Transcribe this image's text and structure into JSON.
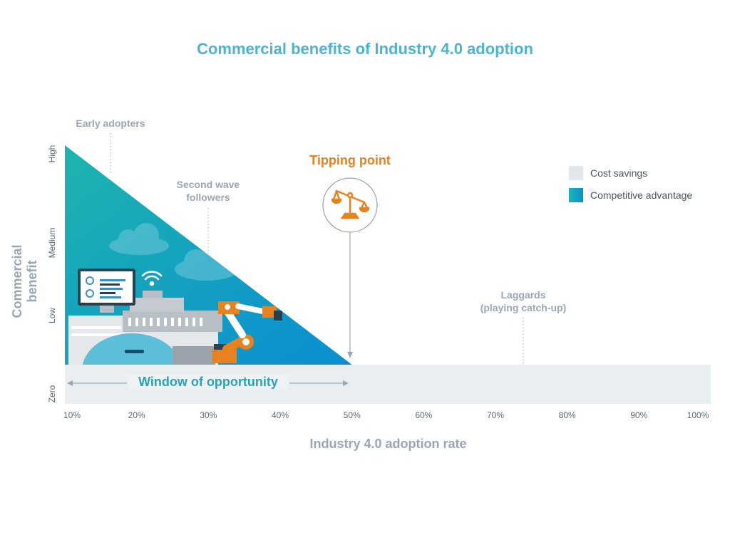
{
  "chart_data": {
    "type": "area",
    "title": "Commercial benefits of Industry 4.0 adoption",
    "xlabel": "Industry 4.0 adoption rate",
    "ylabel": "Commercial benefit",
    "x_ticks": [
      "10%",
      "20%",
      "30%",
      "40%",
      "50%",
      "60%",
      "70%",
      "80%",
      "90%",
      "100%"
    ],
    "y_ticks": [
      "Zero",
      "Low",
      "Medium",
      "High"
    ],
    "xlim": [
      10,
      100
    ],
    "series": [
      {
        "name": "Cost savings",
        "x": [
          10,
          100
        ],
        "y_level": "Zero",
        "color": "#e9eef1"
      },
      {
        "name": "Competitive advantage",
        "x": [
          10,
          50
        ],
        "y": [
          "High",
          "Zero"
        ],
        "color_start": "#1ab0b0",
        "color_end": "#0a8fd0"
      }
    ],
    "annotations": [
      {
        "text": "Early adopters",
        "x": 16.5
      },
      {
        "text_lines": [
          "Second wave",
          "followers"
        ],
        "x": 30
      },
      {
        "text": "Tipping point",
        "x": 50
      },
      {
        "text_lines": [
          "Laggards",
          "(playing catch-up)"
        ],
        "x": 75.5
      },
      {
        "text": "Window of opportunity",
        "x_range": [
          10,
          50
        ]
      }
    ],
    "legend_position": "right",
    "grid": false
  },
  "icons": [
    "scales-icon",
    "cloud-icon",
    "wifi-icon",
    "monitor-dashboard-icon",
    "factory-icon",
    "robot-arm-icon"
  ],
  "colors": {
    "title": "#4db3d0",
    "tipping": "#e8821e",
    "axis_label": "#9aa7b3"
  }
}
